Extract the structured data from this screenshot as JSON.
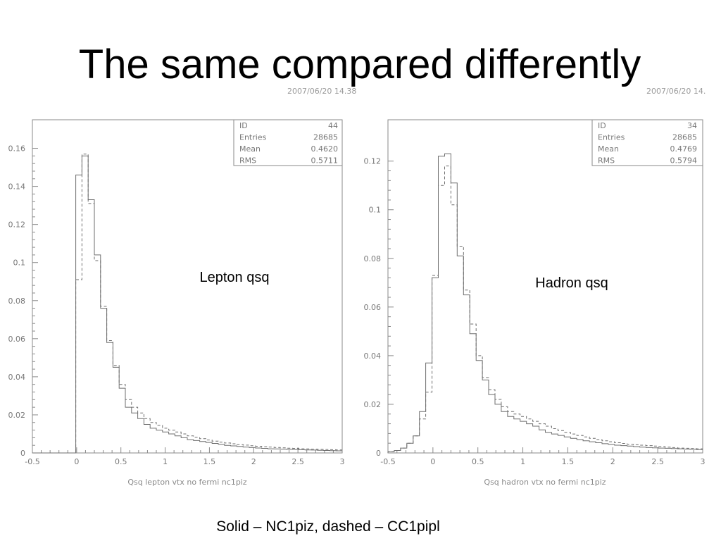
{
  "slide": {
    "title": "The same compared differently",
    "caption": "Solid – NC1piz, dashed – CC1pipl"
  },
  "chart_data": [
    {
      "type": "histogram",
      "timestamp": "2007/06/20  14.38",
      "xlabel": "Qsq lepton vtx no fermi nc1piz",
      "annotation": "Lepton qsq",
      "xlim": [
        -0.5,
        3
      ],
      "ylim": [
        0,
        0.175
      ],
      "yticks": [
        0,
        0.02,
        0.04,
        0.06,
        0.08,
        0.1,
        0.12,
        0.14,
        0.16
      ],
      "ytick_labels": [
        "0",
        "0.02",
        "0.04",
        "0.06",
        "0.08",
        "0.1",
        "0.12",
        "0.14",
        "0.16"
      ],
      "xticks": [
        -0.5,
        0,
        0.5,
        1,
        1.5,
        2,
        2.5,
        3
      ],
      "xtick_labels": [
        "-0.5",
        "0",
        "0.5",
        "1",
        "1.5",
        "2",
        "2.5",
        "3"
      ],
      "stats": [
        {
          "label": "ID",
          "value": "44"
        },
        {
          "label": "Entries",
          "value": "28685"
        },
        {
          "label": "Mean",
          "value": "0.4620"
        },
        {
          "label": "RMS",
          "value": "0.5711"
        }
      ],
      "bin_width": 0.07,
      "series": [
        {
          "name": "NC1piz",
          "style": "solid",
          "edges_start": -0.5,
          "values": [
            0,
            0,
            0,
            0,
            0,
            0,
            0,
            0.146,
            0.156,
            0.133,
            0.104,
            0.076,
            0.058,
            0.045,
            0.034,
            0.024,
            0.021,
            0.018,
            0.015,
            0.013,
            0.012,
            0.011,
            0.01,
            0.009,
            0.008,
            0.007,
            0.0065,
            0.006,
            0.0055,
            0.005,
            0.0045,
            0.004,
            0.0037,
            0.0034,
            0.0031,
            0.0028,
            0.0026,
            0.0024,
            0.0022,
            0.0021,
            0.002,
            0.0019,
            0.0018,
            0.0017,
            0.0016,
            0.0015,
            0.0014,
            0.0013,
            0.0012,
            0.0011
          ]
        },
        {
          "name": "CC1pipl",
          "style": "dashed",
          "edges_start": -0.5,
          "values": [
            0,
            0,
            0,
            0,
            0,
            0,
            0,
            0.091,
            0.157,
            0.131,
            0.101,
            0.077,
            0.059,
            0.046,
            0.036,
            0.028,
            0.024,
            0.021,
            0.018,
            0.016,
            0.0145,
            0.013,
            0.012,
            0.011,
            0.01,
            0.009,
            0.0082,
            0.0075,
            0.0068,
            0.0062,
            0.0057,
            0.0052,
            0.0048,
            0.0044,
            0.0041,
            0.0038,
            0.0035,
            0.0033,
            0.0031,
            0.0029,
            0.0027,
            0.0025,
            0.0024,
            0.0022,
            0.0021,
            0.002,
            0.0019,
            0.0018,
            0.0017,
            0.0016
          ]
        }
      ]
    },
    {
      "type": "histogram",
      "timestamp": "2007/06/20  14.",
      "xlabel": "Qsq hadron vtx no fermi nc1piz",
      "annotation": "Hadron qsq",
      "xlim": [
        -0.5,
        3
      ],
      "ylim": [
        0,
        0.137
      ],
      "yticks": [
        0,
        0.02,
        0.04,
        0.06,
        0.08,
        0.1,
        0.12
      ],
      "ytick_labels": [
        "0",
        "0.02",
        "0.04",
        "0.06",
        "0.08",
        "0.1",
        "0.12"
      ],
      "xticks": [
        -0.5,
        0,
        0.5,
        1,
        1.5,
        2,
        2.5,
        3
      ],
      "xtick_labels": [
        "-0.5",
        "0",
        "0.5",
        "1",
        "1.5",
        "2",
        "2.5",
        "3"
      ],
      "stats": [
        {
          "label": "ID",
          "value": "34"
        },
        {
          "label": "Entries",
          "value": "28685"
        },
        {
          "label": "Mean",
          "value": "0.4769"
        },
        {
          "label": "RMS",
          "value": "0.5794"
        }
      ],
      "bin_width": 0.07,
      "series": [
        {
          "name": "NC1piz",
          "style": "solid",
          "edges_start": -0.5,
          "values": [
            0.0005,
            0.001,
            0.002,
            0.004,
            0.007,
            0.017,
            0.037,
            0.072,
            0.122,
            0.123,
            0.111,
            0.081,
            0.065,
            0.049,
            0.038,
            0.03,
            0.024,
            0.02,
            0.017,
            0.015,
            0.014,
            0.013,
            0.012,
            0.011,
            0.0095,
            0.0085,
            0.0078,
            0.0072,
            0.0066,
            0.006,
            0.0055,
            0.005,
            0.0046,
            0.0042,
            0.0038,
            0.0035,
            0.0032,
            0.003,
            0.0028,
            0.0026,
            0.0024,
            0.0022,
            0.0021,
            0.002,
            0.0019,
            0.0018,
            0.0017,
            0.0016,
            0.0015,
            0.0014
          ]
        },
        {
          "name": "CC1pipl",
          "style": "dashed",
          "edges_start": -0.5,
          "values": [
            0.0005,
            0.001,
            0.002,
            0.004,
            0.007,
            0.014,
            0.025,
            0.073,
            0.11,
            0.118,
            0.102,
            0.085,
            0.067,
            0.053,
            0.04,
            0.031,
            0.026,
            0.022,
            0.019,
            0.017,
            0.016,
            0.015,
            0.014,
            0.013,
            0.012,
            0.011,
            0.01,
            0.0092,
            0.0085,
            0.0078,
            0.0072,
            0.0066,
            0.006,
            0.0055,
            0.005,
            0.0046,
            0.0042,
            0.0039,
            0.0036,
            0.0034,
            0.0032,
            0.003,
            0.0028,
            0.0026,
            0.0024,
            0.0022,
            0.002,
            0.0019,
            0.0018,
            0.0017
          ]
        }
      ]
    }
  ]
}
